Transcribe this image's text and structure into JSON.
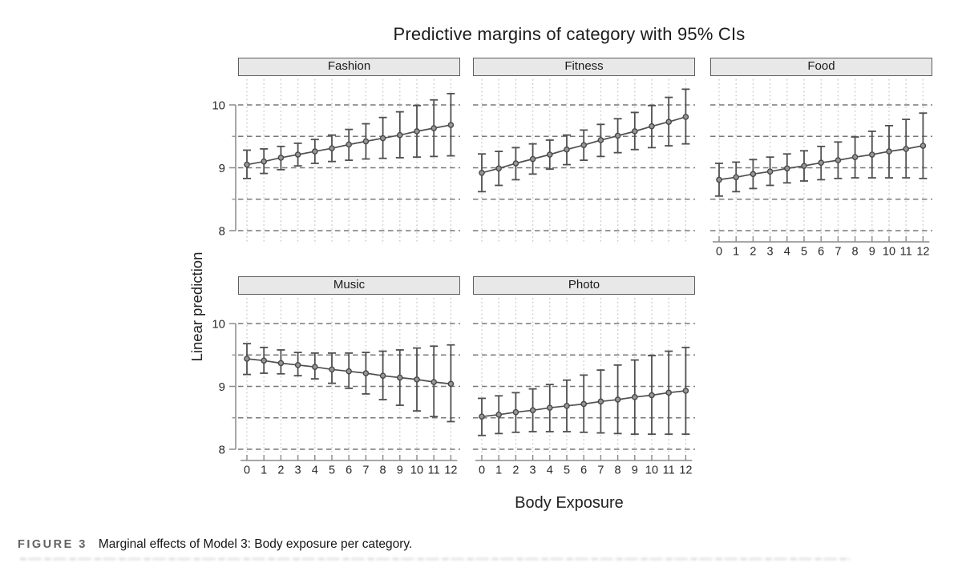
{
  "figure": {
    "title": "Predictive margins of category with 95% CIs",
    "ylabel": "Linear prediction",
    "xlabel": "Body Exposure"
  },
  "caption": {
    "label": "FIGURE 3",
    "text": "Marginal effects of Model 3: Body exposure per category."
  },
  "chart_data": {
    "type": "line",
    "title": "Predictive margins of category with 95% CIs",
    "xlabel": "Body Exposure",
    "ylabel": "Linear prediction",
    "error_bars": "95% CI",
    "x": [
      0,
      1,
      2,
      3,
      4,
      5,
      6,
      7,
      8,
      9,
      10,
      11,
      12
    ],
    "ylim": [
      7.8,
      10.45
    ],
    "yticks": [
      10,
      9,
      8
    ],
    "yticks_minor": [
      9.5,
      8.5
    ],
    "gridlines_y": [
      10,
      9.5,
      9,
      8.5,
      8
    ],
    "grid": "horizontal dashed at ticks, vertical dotted at each x",
    "legend": "none",
    "panels": [
      {
        "title": "Fashion",
        "mean": [
          9.05,
          9.1,
          9.16,
          9.21,
          9.26,
          9.31,
          9.37,
          9.42,
          9.47,
          9.52,
          9.58,
          9.63,
          9.68
        ],
        "ci_low": [
          8.83,
          8.91,
          8.97,
          9.03,
          9.07,
          9.1,
          9.12,
          9.14,
          9.15,
          9.16,
          9.17,
          9.18,
          9.19
        ],
        "ci_high": [
          9.28,
          9.3,
          9.34,
          9.39,
          9.45,
          9.52,
          9.61,
          9.7,
          9.8,
          9.89,
          9.99,
          10.08,
          10.18
        ]
      },
      {
        "title": "Fitness",
        "mean": [
          8.92,
          8.99,
          9.07,
          9.14,
          9.21,
          9.29,
          9.36,
          9.44,
          9.51,
          9.58,
          9.66,
          9.73,
          9.81
        ],
        "ci_low": [
          8.62,
          8.72,
          8.81,
          8.9,
          8.98,
          9.05,
          9.12,
          9.18,
          9.24,
          9.29,
          9.32,
          9.35,
          9.38
        ],
        "ci_high": [
          9.22,
          9.26,
          9.32,
          9.38,
          9.44,
          9.52,
          9.6,
          9.69,
          9.78,
          9.88,
          9.99,
          10.12,
          10.25
        ]
      },
      {
        "title": "Food",
        "mean": [
          8.81,
          8.85,
          8.9,
          8.94,
          8.99,
          9.03,
          9.08,
          9.12,
          9.17,
          9.21,
          9.26,
          9.3,
          9.35
        ],
        "ci_low": [
          8.55,
          8.62,
          8.67,
          8.72,
          8.76,
          8.79,
          8.81,
          8.83,
          8.84,
          8.84,
          8.84,
          8.84,
          8.83
        ],
        "ci_high": [
          9.07,
          9.09,
          9.13,
          9.17,
          9.22,
          9.27,
          9.34,
          9.41,
          9.49,
          9.58,
          9.67,
          9.77,
          9.87
        ]
      },
      {
        "title": "Music",
        "mean": [
          9.44,
          9.41,
          9.37,
          9.34,
          9.31,
          9.27,
          9.24,
          9.21,
          9.17,
          9.14,
          9.11,
          9.07,
          9.04
        ],
        "ci_low": [
          9.19,
          9.21,
          9.2,
          9.17,
          9.12,
          9.05,
          8.97,
          8.88,
          8.79,
          8.7,
          8.61,
          8.52,
          8.44
        ],
        "ci_high": [
          9.68,
          9.62,
          9.58,
          9.54,
          9.53,
          9.53,
          9.53,
          9.54,
          9.56,
          9.58,
          9.61,
          9.64,
          9.66
        ]
      },
      {
        "title": "Photo",
        "mean": [
          8.52,
          8.55,
          8.59,
          8.62,
          8.66,
          8.69,
          8.72,
          8.76,
          8.79,
          8.83,
          8.86,
          8.9,
          8.93
        ],
        "ci_low": [
          8.22,
          8.25,
          8.27,
          8.28,
          8.28,
          8.28,
          8.27,
          8.26,
          8.25,
          8.24,
          8.24,
          8.24,
          8.24
        ],
        "ci_high": [
          8.81,
          8.85,
          8.9,
          8.96,
          9.03,
          9.1,
          9.18,
          9.26,
          9.34,
          9.42,
          9.49,
          9.56,
          9.62
        ]
      }
    ],
    "colors": {
      "ink": "#4f4f4f",
      "marker_fill": "#979797",
      "marker_stroke": "#484848",
      "grid_dashed": "#787878",
      "grid_dotted": "#c6c6c6",
      "axis": "#8a8a8a",
      "tick_label": "#2a2a2a",
      "header_fill": "#e8e8e8",
      "header_border": "#5f5f5f"
    }
  }
}
